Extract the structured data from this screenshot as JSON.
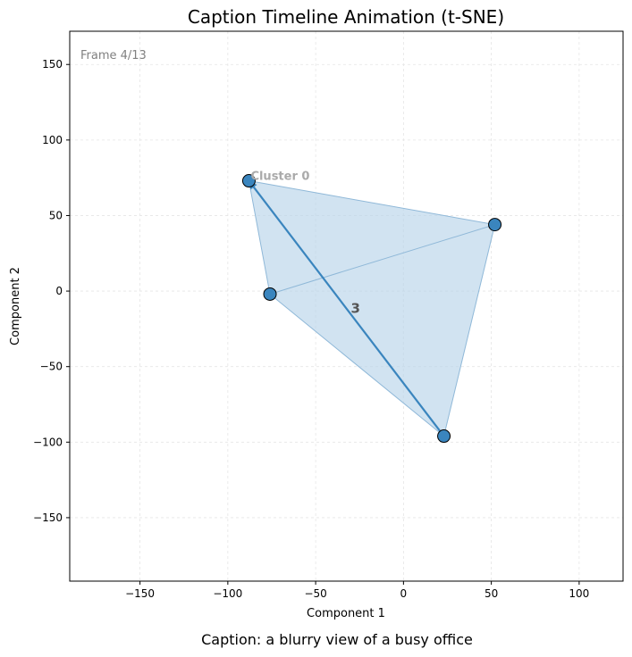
{
  "chart_data": {
    "type": "scatter",
    "title": "Caption Timeline Animation (t-SNE)",
    "xlabel": "Component 1",
    "ylabel": "Component 2",
    "xlim": [
      -190,
      125
    ],
    "ylim": [
      -192,
      172
    ],
    "xticks": [
      -150,
      -100,
      -50,
      0,
      50,
      100
    ],
    "yticks": [
      -150,
      -100,
      -50,
      0,
      50,
      100,
      150
    ],
    "grid": true,
    "frame_label": "Frame 4/13",
    "caption": "Caption: a blurry view of a busy office",
    "colors": {
      "points": "#3a85be",
      "hull": "#b8d4e9",
      "arrow": "#3a85be",
      "grid": "#e5e5e5"
    },
    "points": [
      {
        "x": -88,
        "y": 73
      },
      {
        "x": 52,
        "y": 44
      },
      {
        "x": -76,
        "y": -2
      },
      {
        "x": 23,
        "y": -96
      }
    ],
    "hull": [
      {
        "x": -88,
        "y": 73
      },
      {
        "x": 52,
        "y": 44
      },
      {
        "x": 23,
        "y": -96
      },
      {
        "x": -76,
        "y": -2
      }
    ],
    "path_lines": [
      {
        "from": {
          "x": -76,
          "y": -2
        },
        "to": {
          "x": 52,
          "y": 44
        }
      }
    ],
    "arrow": {
      "from": {
        "x": 23,
        "y": -96
      },
      "to": {
        "x": -88,
        "y": 73
      },
      "label": "3"
    },
    "cluster_label": {
      "text": "Cluster 0",
      "x": -88,
      "y": 73
    }
  }
}
